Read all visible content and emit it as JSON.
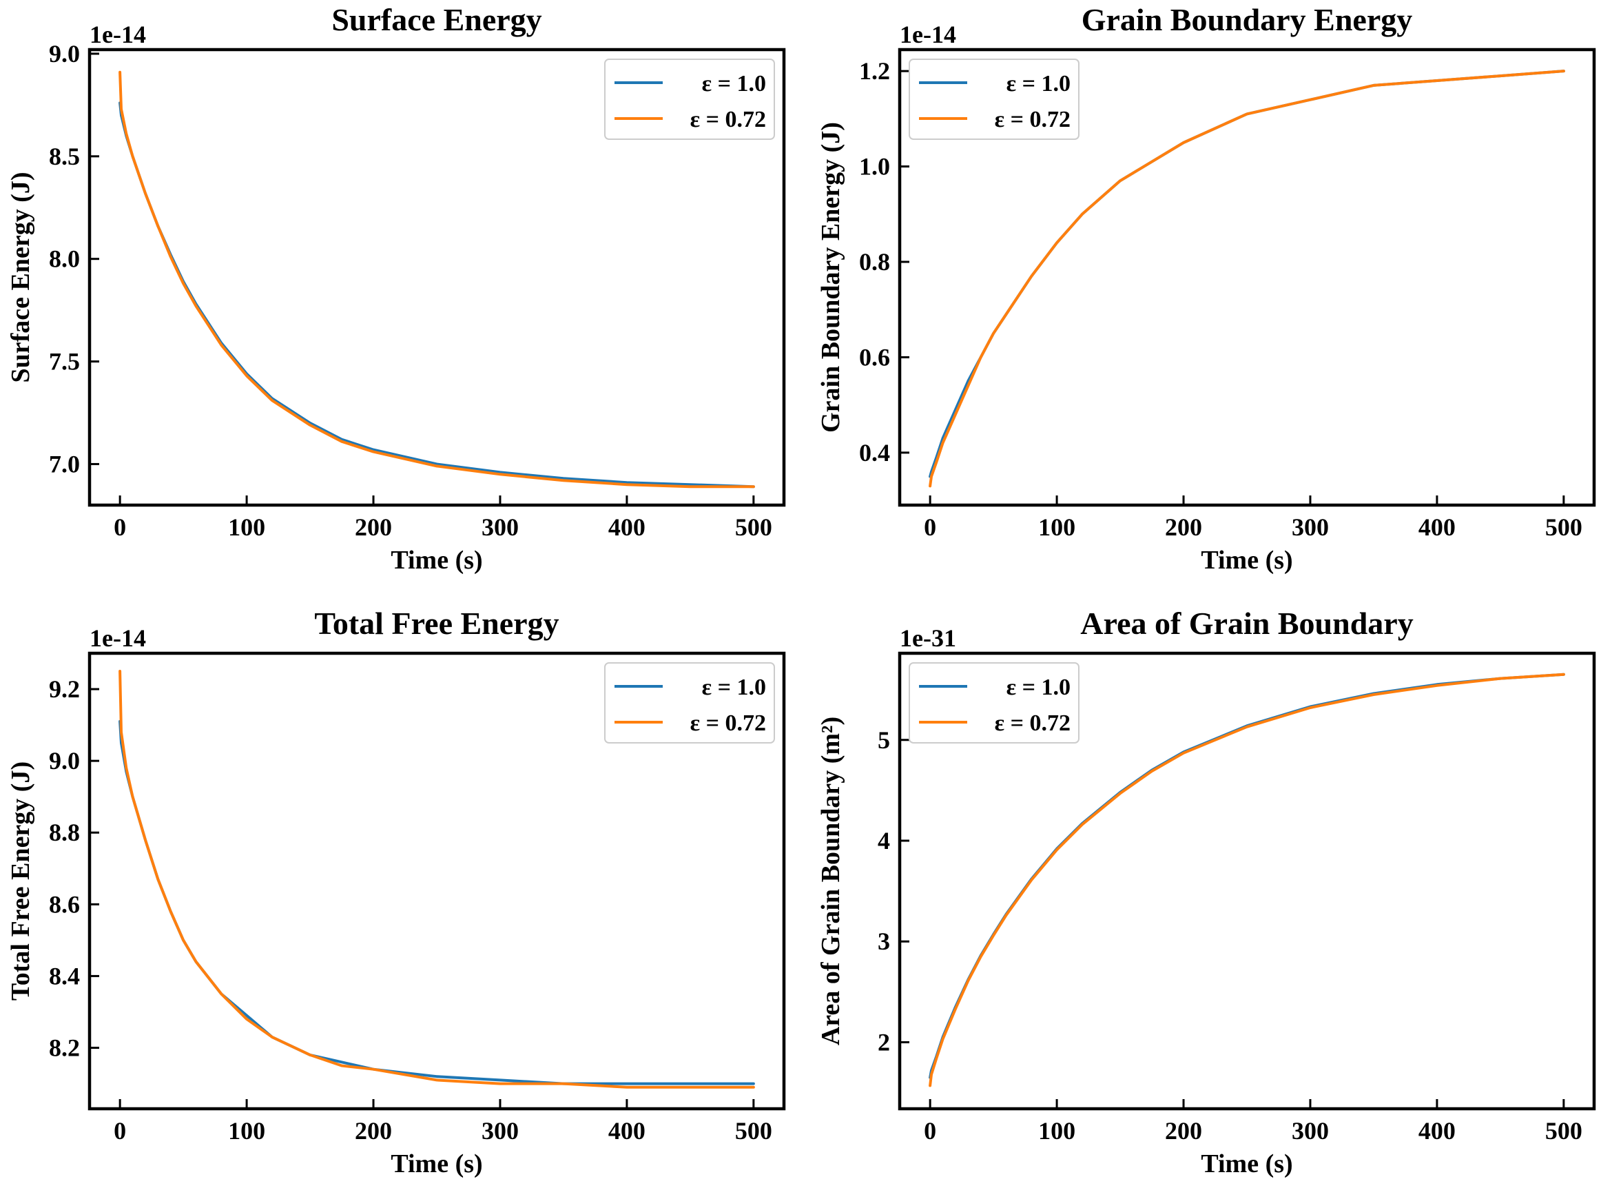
{
  "chart_data": [
    {
      "type": "line",
      "title": "Surface Energy",
      "xlabel": "Time (s)",
      "ylabel": "Surface Energy (J)",
      "y_offset_label": "1e-14",
      "xlim": [
        -24,
        524
      ],
      "ylim": [
        6.8,
        9.02
      ],
      "xticks": [
        0,
        100,
        200,
        300,
        400,
        500
      ],
      "yticks": [
        7.0,
        7.5,
        8.0,
        8.5,
        9.0
      ],
      "ytick_labels": [
        "7.0",
        "7.5",
        "8.0",
        "8.5",
        "9.0"
      ],
      "legend_position": "top-right",
      "x": [
        0,
        1,
        5,
        10,
        20,
        30,
        40,
        50,
        60,
        80,
        100,
        120,
        150,
        175,
        200,
        250,
        300,
        350,
        400,
        450,
        500
      ],
      "series": [
        {
          "name": "ε = 1.0",
          "color": "#1f77b4",
          "values": [
            8.76,
            8.7,
            8.6,
            8.5,
            8.32,
            8.16,
            8.02,
            7.89,
            7.78,
            7.59,
            7.44,
            7.32,
            7.2,
            7.12,
            7.07,
            7.0,
            6.96,
            6.93,
            6.91,
            6.9,
            6.89
          ]
        },
        {
          "name": "ε = 0.72",
          "color": "#ff7f0e",
          "values": [
            8.91,
            8.73,
            8.61,
            8.5,
            8.32,
            8.16,
            8.01,
            7.88,
            7.77,
            7.58,
            7.43,
            7.31,
            7.19,
            7.11,
            7.06,
            6.99,
            6.95,
            6.92,
            6.9,
            6.89,
            6.89
          ]
        }
      ]
    },
    {
      "type": "line",
      "title": "Grain Boundary Energy",
      "xlabel": "Time (s)",
      "ylabel": "Grain Boundary Energy (J)",
      "y_offset_label": "1e-14",
      "xlim": [
        -24,
        524
      ],
      "ylim": [
        0.29,
        1.245
      ],
      "xticks": [
        0,
        100,
        200,
        300,
        400,
        500
      ],
      "yticks": [
        0.4,
        0.6,
        0.8,
        1.0,
        1.2
      ],
      "ytick_labels": [
        "0.4",
        "0.6",
        "0.8",
        "1.0",
        "1.2"
      ],
      "legend_position": "top-left",
      "x": [
        0,
        1,
        5,
        10,
        20,
        30,
        40,
        50,
        60,
        80,
        100,
        120,
        150,
        175,
        200,
        250,
        300,
        350,
        400,
        450,
        500
      ],
      "series": [
        {
          "name": "ε = 1.0",
          "color": "#1f77b4",
          "values": [
            0.35,
            0.36,
            0.39,
            0.43,
            0.49,
            0.55,
            0.6,
            0.65,
            0.69,
            0.77,
            0.84,
            0.9,
            0.97,
            1.01,
            1.05,
            1.11,
            1.14,
            1.17,
            1.18,
            1.19,
            1.2
          ]
        },
        {
          "name": "ε = 0.72",
          "color": "#ff7f0e",
          "values": [
            0.33,
            0.35,
            0.38,
            0.42,
            0.48,
            0.54,
            0.6,
            0.65,
            0.69,
            0.77,
            0.84,
            0.9,
            0.97,
            1.01,
            1.05,
            1.11,
            1.14,
            1.17,
            1.18,
            1.19,
            1.2
          ]
        }
      ]
    },
    {
      "type": "line",
      "title": "Total Free Energy",
      "xlabel": "Time (s)",
      "ylabel": "Total Free Energy (J)",
      "y_offset_label": "1e-14",
      "xlim": [
        -24,
        524
      ],
      "ylim": [
        8.03,
        9.3
      ],
      "xticks": [
        0,
        100,
        200,
        300,
        400,
        500
      ],
      "yticks": [
        8.2,
        8.4,
        8.6,
        8.8,
        9.0,
        9.2
      ],
      "ytick_labels": [
        "8.2",
        "8.4",
        "8.6",
        "8.8",
        "9.0",
        "9.2"
      ],
      "legend_position": "top-right",
      "x": [
        0,
        1,
        5,
        10,
        20,
        30,
        40,
        50,
        60,
        80,
        100,
        120,
        150,
        175,
        200,
        250,
        300,
        350,
        400,
        450,
        500
      ],
      "series": [
        {
          "name": "ε = 1.0",
          "color": "#1f77b4",
          "values": [
            9.11,
            9.05,
            8.97,
            8.9,
            8.78,
            8.67,
            8.58,
            8.5,
            8.44,
            8.35,
            8.29,
            8.23,
            8.18,
            8.16,
            8.14,
            8.12,
            8.11,
            8.1,
            8.1,
            8.1,
            8.1
          ]
        },
        {
          "name": "ε = 0.72",
          "color": "#ff7f0e",
          "values": [
            9.25,
            9.08,
            8.98,
            8.9,
            8.78,
            8.67,
            8.58,
            8.5,
            8.44,
            8.35,
            8.28,
            8.23,
            8.18,
            8.15,
            8.14,
            8.11,
            8.1,
            8.1,
            8.09,
            8.09,
            8.09
          ]
        }
      ]
    },
    {
      "type": "line",
      "title": "Area of Grain Boundary",
      "xlabel": "Time (s)",
      "ylabel": "Area of Grain Boundary (m²)",
      "y_offset_label": "1e-31",
      "xlim": [
        -24,
        524
      ],
      "ylim": [
        1.34,
        5.86
      ],
      "xticks": [
        0,
        100,
        200,
        300,
        400,
        500
      ],
      "yticks": [
        2,
        3,
        4,
        5
      ],
      "ytick_labels": [
        "2",
        "3",
        "4",
        "5"
      ],
      "legend_position": "top-left",
      "x": [
        0,
        1,
        5,
        10,
        20,
        30,
        40,
        50,
        60,
        80,
        100,
        120,
        150,
        175,
        200,
        250,
        300,
        350,
        400,
        450,
        500
      ],
      "series": [
        {
          "name": "ε = 1.0",
          "color": "#1f77b4",
          "values": [
            1.65,
            1.72,
            1.86,
            2.05,
            2.35,
            2.62,
            2.86,
            3.07,
            3.27,
            3.62,
            3.92,
            4.17,
            4.48,
            4.7,
            4.88,
            5.14,
            5.33,
            5.46,
            5.55,
            5.61,
            5.65
          ]
        },
        {
          "name": "ε = 0.72",
          "color": "#ff7f0e",
          "values": [
            1.57,
            1.68,
            1.84,
            2.03,
            2.33,
            2.61,
            2.85,
            3.06,
            3.26,
            3.61,
            3.91,
            4.16,
            4.47,
            4.69,
            4.87,
            5.13,
            5.32,
            5.45,
            5.54,
            5.61,
            5.65
          ]
        }
      ]
    }
  ]
}
